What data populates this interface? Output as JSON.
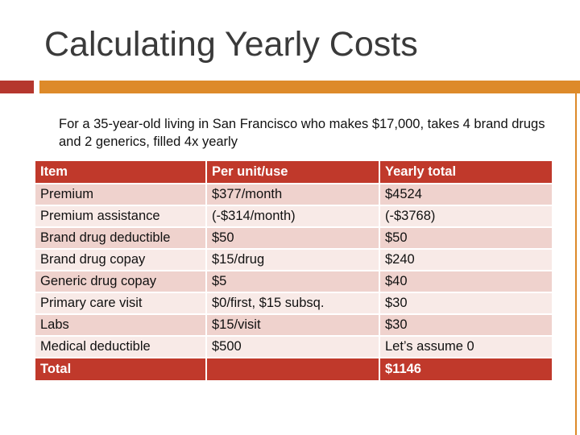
{
  "slide": {
    "title": "Calculating Yearly Costs",
    "intro": "For a 35-year-old living in San Francisco who makes $17,000, takes 4 brand drugs and 2 generics, filled 4x yearly"
  },
  "colors": {
    "accent_red": "#b5372e",
    "accent_orange": "#dd8a2a",
    "header_red": "#c0392b",
    "row_dark": "#efd2cd",
    "row_light": "#f8eae7"
  },
  "table": {
    "headers": [
      "Item",
      "Per unit/use",
      "Yearly total"
    ],
    "rows": [
      [
        "Premium",
        "$377/month",
        "$4524"
      ],
      [
        "Premium assistance",
        "(-$314/month)",
        "(-$3768)"
      ],
      [
        "Brand drug deductible",
        "$50",
        "$50"
      ],
      [
        "Brand drug copay",
        "$15/drug",
        "$240"
      ],
      [
        "Generic drug copay",
        "$5",
        "$40"
      ],
      [
        "Primary care visit",
        "$0/first, $15 subsq.",
        "$30"
      ],
      [
        "Labs",
        "$15/visit",
        "$30"
      ],
      [
        "Medical deductible",
        "$500",
        "Let’s assume 0"
      ]
    ],
    "footer": [
      "Total",
      "",
      "$1146"
    ]
  }
}
